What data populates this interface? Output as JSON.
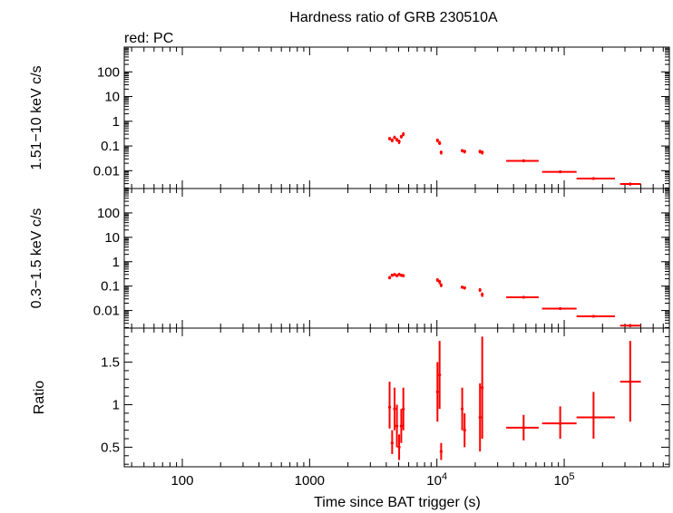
{
  "chart_data": {
    "type": "scatter",
    "title": "Hardness ratio of GRB 230510A",
    "subtitle": "red: PC",
    "xlabel": "Time since BAT trigger (s)",
    "x_scale": "log",
    "xlim": [
      35,
      670000
    ],
    "x_ticklabels": [
      {
        "value": 100,
        "label": "100"
      },
      {
        "value": 1000,
        "label": "1000"
      },
      {
        "value": 10000,
        "label": "10",
        "exp": "4"
      },
      {
        "value": 100000,
        "label": "10",
        "exp": "5"
      }
    ],
    "series_color": "#ff0000",
    "panels": [
      {
        "ylabel": "1.51−10 keV c/s",
        "y_scale": "log",
        "ylim": [
          0.0019,
          1000
        ],
        "y_ticklabels": [
          {
            "value": 100,
            "label": "100"
          },
          {
            "value": 10,
            "label": "10"
          },
          {
            "value": 1,
            "label": "1"
          },
          {
            "value": 0.1,
            "label": "0.1"
          },
          {
            "value": 0.01,
            "label": "0.01"
          }
        ],
        "points": [
          {
            "x": 4250,
            "xlo": 4150,
            "xhi": 4350,
            "y": 0.2,
            "ylo": 0.17,
            "yhi": 0.23
          },
          {
            "x": 4450,
            "xlo": 4350,
            "xhi": 4550,
            "y": 0.17,
            "ylo": 0.14,
            "yhi": 0.2
          },
          {
            "x": 4650,
            "xlo": 4550,
            "xhi": 4750,
            "y": 0.22,
            "ylo": 0.19,
            "yhi": 0.26
          },
          {
            "x": 4850,
            "xlo": 4750,
            "xhi": 4950,
            "y": 0.18,
            "ylo": 0.15,
            "yhi": 0.21
          },
          {
            "x": 5050,
            "xlo": 4950,
            "xhi": 5150,
            "y": 0.15,
            "ylo": 0.12,
            "yhi": 0.18
          },
          {
            "x": 5250,
            "xlo": 5150,
            "xhi": 5350,
            "y": 0.24,
            "ylo": 0.2,
            "yhi": 0.28
          },
          {
            "x": 5450,
            "xlo": 5350,
            "xhi": 5550,
            "y": 0.3,
            "ylo": 0.25,
            "yhi": 0.36
          },
          {
            "x": 10100,
            "xlo": 9900,
            "xhi": 10300,
            "y": 0.17,
            "ylo": 0.14,
            "yhi": 0.2
          },
          {
            "x": 10500,
            "xlo": 10300,
            "xhi": 10700,
            "y": 0.13,
            "ylo": 0.11,
            "yhi": 0.16
          },
          {
            "x": 10800,
            "xlo": 10700,
            "xhi": 10900,
            "y": 0.055,
            "ylo": 0.045,
            "yhi": 0.065
          },
          {
            "x": 15800,
            "xlo": 15500,
            "xhi": 16100,
            "y": 0.065,
            "ylo": 0.055,
            "yhi": 0.075
          },
          {
            "x": 16500,
            "xlo": 16100,
            "xhi": 16900,
            "y": 0.06,
            "ylo": 0.05,
            "yhi": 0.07
          },
          {
            "x": 21800,
            "xlo": 21400,
            "xhi": 22200,
            "y": 0.06,
            "ylo": 0.05,
            "yhi": 0.07
          },
          {
            "x": 22700,
            "xlo": 22200,
            "xhi": 23200,
            "y": 0.055,
            "ylo": 0.045,
            "yhi": 0.065
          },
          {
            "x": 48000,
            "xlo": 35000,
            "xhi": 63000,
            "y": 0.025,
            "ylo": 0.022,
            "yhi": 0.029
          },
          {
            "x": 93000,
            "xlo": 67000,
            "xhi": 125000,
            "y": 0.009,
            "ylo": 0.008,
            "yhi": 0.0103
          },
          {
            "x": 170000,
            "xlo": 125000,
            "xhi": 250000,
            "y": 0.0048,
            "ylo": 0.0043,
            "yhi": 0.0054
          },
          {
            "x": 330000,
            "xlo": 275000,
            "xhi": 400000,
            "y": 0.0029,
            "ylo": 0.0025,
            "yhi": 0.0033
          }
        ]
      },
      {
        "ylabel": "0.3−1.5 keV c/s",
        "y_scale": "log",
        "ylim": [
          0.0019,
          1000
        ],
        "y_ticklabels": [
          {
            "value": 100,
            "label": "100"
          },
          {
            "value": 10,
            "label": "10"
          },
          {
            "value": 1,
            "label": "1"
          },
          {
            "value": 0.1,
            "label": "0.1"
          },
          {
            "value": 0.01,
            "label": "0.01"
          }
        ],
        "points": [
          {
            "x": 4250,
            "xlo": 4150,
            "xhi": 4350,
            "y": 0.22,
            "ylo": 0.19,
            "yhi": 0.26
          },
          {
            "x": 4450,
            "xlo": 4350,
            "xhi": 4550,
            "y": 0.28,
            "ylo": 0.24,
            "yhi": 0.32
          },
          {
            "x": 4650,
            "xlo": 4550,
            "xhi": 4750,
            "y": 0.3,
            "ylo": 0.26,
            "yhi": 0.34
          },
          {
            "x": 4850,
            "xlo": 4750,
            "xhi": 4950,
            "y": 0.27,
            "ylo": 0.23,
            "yhi": 0.31
          },
          {
            "x": 5050,
            "xlo": 4950,
            "xhi": 5150,
            "y": 0.3,
            "ylo": 0.26,
            "yhi": 0.35
          },
          {
            "x": 5250,
            "xlo": 5150,
            "xhi": 5350,
            "y": 0.28,
            "ylo": 0.24,
            "yhi": 0.32
          },
          {
            "x": 5450,
            "xlo": 5350,
            "xhi": 5550,
            "y": 0.27,
            "ylo": 0.23,
            "yhi": 0.31
          },
          {
            "x": 10100,
            "xlo": 9900,
            "xhi": 10300,
            "y": 0.18,
            "ylo": 0.15,
            "yhi": 0.21
          },
          {
            "x": 10500,
            "xlo": 10300,
            "xhi": 10700,
            "y": 0.15,
            "ylo": 0.12,
            "yhi": 0.18
          },
          {
            "x": 10800,
            "xlo": 10700,
            "xhi": 10900,
            "y": 0.11,
            "ylo": 0.09,
            "yhi": 0.13
          },
          {
            "x": 15800,
            "xlo": 15500,
            "xhi": 16100,
            "y": 0.09,
            "ylo": 0.078,
            "yhi": 0.104
          },
          {
            "x": 16500,
            "xlo": 16100,
            "xhi": 16900,
            "y": 0.085,
            "ylo": 0.072,
            "yhi": 0.098
          },
          {
            "x": 21800,
            "xlo": 21400,
            "xhi": 22200,
            "y": 0.07,
            "ylo": 0.058,
            "yhi": 0.082
          },
          {
            "x": 22700,
            "xlo": 22200,
            "xhi": 23200,
            "y": 0.045,
            "ylo": 0.036,
            "yhi": 0.055
          },
          {
            "x": 48000,
            "xlo": 35000,
            "xhi": 63000,
            "y": 0.035,
            "ylo": 0.031,
            "yhi": 0.039
          },
          {
            "x": 93000,
            "xlo": 67000,
            "xhi": 125000,
            "y": 0.012,
            "ylo": 0.0108,
            "yhi": 0.0133
          },
          {
            "x": 170000,
            "xlo": 125000,
            "xhi": 250000,
            "y": 0.0058,
            "ylo": 0.0052,
            "yhi": 0.0065
          },
          {
            "x": 330000,
            "xlo": 275000,
            "xhi": 400000,
            "y": 0.0024,
            "ylo": 0.0021,
            "yhi": 0.0028
          }
        ]
      },
      {
        "ylabel": "Ratio",
        "y_scale": "linear",
        "ylim": [
          0.27,
          1.9
        ],
        "y_ticklabels": [
          {
            "value": 1.5,
            "label": "1.5"
          },
          {
            "value": 1,
            "label": "1"
          },
          {
            "value": 0.5,
            "label": "0.5"
          }
        ],
        "points": [
          {
            "x": 4250,
            "xlo": 4150,
            "xhi": 4350,
            "y": 0.97,
            "ylo": 0.72,
            "yhi": 1.27
          },
          {
            "x": 4450,
            "xlo": 4350,
            "xhi": 4550,
            "y": 0.55,
            "ylo": 0.42,
            "yhi": 0.7
          },
          {
            "x": 4650,
            "xlo": 4550,
            "xhi": 4750,
            "y": 0.95,
            "ylo": 0.7,
            "yhi": 1.2
          },
          {
            "x": 4850,
            "xlo": 4750,
            "xhi": 4950,
            "y": 0.75,
            "ylo": 0.5,
            "yhi": 1.0
          },
          {
            "x": 5050,
            "xlo": 4950,
            "xhi": 5150,
            "y": 0.5,
            "ylo": 0.35,
            "yhi": 0.65
          },
          {
            "x": 5250,
            "xlo": 5150,
            "xhi": 5350,
            "y": 0.75,
            "ylo": 0.55,
            "yhi": 0.95
          },
          {
            "x": 5450,
            "xlo": 5350,
            "xhi": 5550,
            "y": 0.95,
            "ylo": 0.7,
            "yhi": 1.2
          },
          {
            "x": 10100,
            "xlo": 9900,
            "xhi": 10300,
            "y": 1.15,
            "ylo": 0.8,
            "yhi": 1.5
          },
          {
            "x": 10500,
            "xlo": 10300,
            "xhi": 10700,
            "y": 1.35,
            "ylo": 0.95,
            "yhi": 1.75
          },
          {
            "x": 10800,
            "xlo": 10700,
            "xhi": 10900,
            "y": 0.45,
            "ylo": 0.35,
            "yhi": 0.55
          },
          {
            "x": 15800,
            "xlo": 15500,
            "xhi": 16100,
            "y": 0.95,
            "ylo": 0.7,
            "yhi": 1.2
          },
          {
            "x": 16500,
            "xlo": 16100,
            "xhi": 16900,
            "y": 0.7,
            "ylo": 0.5,
            "yhi": 0.9
          },
          {
            "x": 21800,
            "xlo": 21400,
            "xhi": 22200,
            "y": 0.85,
            "ylo": 0.45,
            "yhi": 1.25
          },
          {
            "x": 22700,
            "xlo": 22200,
            "xhi": 23200,
            "y": 1.2,
            "ylo": 0.6,
            "yhi": 1.8
          },
          {
            "x": 48000,
            "xlo": 35000,
            "xhi": 63000,
            "y": 0.73,
            "ylo": 0.58,
            "yhi": 0.88
          },
          {
            "x": 93000,
            "xlo": 67000,
            "xhi": 125000,
            "y": 0.78,
            "ylo": 0.6,
            "yhi": 0.98
          },
          {
            "x": 170000,
            "xlo": 125000,
            "xhi": 250000,
            "y": 0.85,
            "ylo": 0.6,
            "yhi": 1.15
          },
          {
            "x": 330000,
            "xlo": 275000,
            "xhi": 400000,
            "y": 1.27,
            "ylo": 0.8,
            "yhi": 1.75
          }
        ]
      }
    ]
  }
}
